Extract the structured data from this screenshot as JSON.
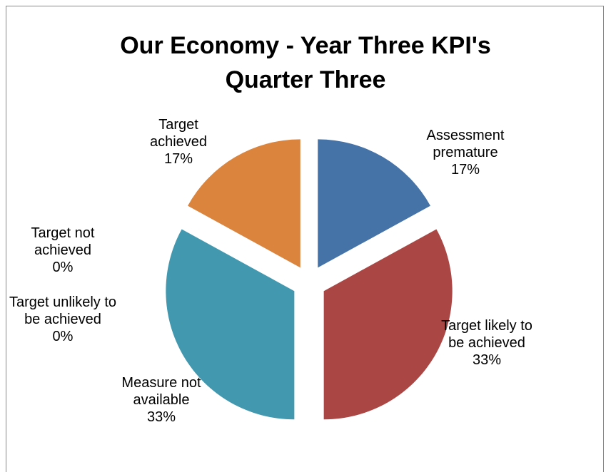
{
  "chart_data": {
    "type": "pie",
    "title": "Our Economy -  Year Three KPI's Quarter  Three",
    "categories": [
      "Assessment premature",
      "Target likely to be achieved",
      "Target not achieved",
      "Target unlikely to be achieved",
      "Measure not available",
      "Target achieved"
    ],
    "values": [
      17,
      33,
      0,
      0,
      33,
      17
    ],
    "value_labels": [
      "17%",
      "33%",
      "0%",
      "0%",
      "33%",
      "17%"
    ],
    "colors": [
      "#4572a7",
      "#aa4643",
      "#89a54e",
      "#71588f",
      "#4198af",
      "#db843d"
    ],
    "exploded": true
  }
}
